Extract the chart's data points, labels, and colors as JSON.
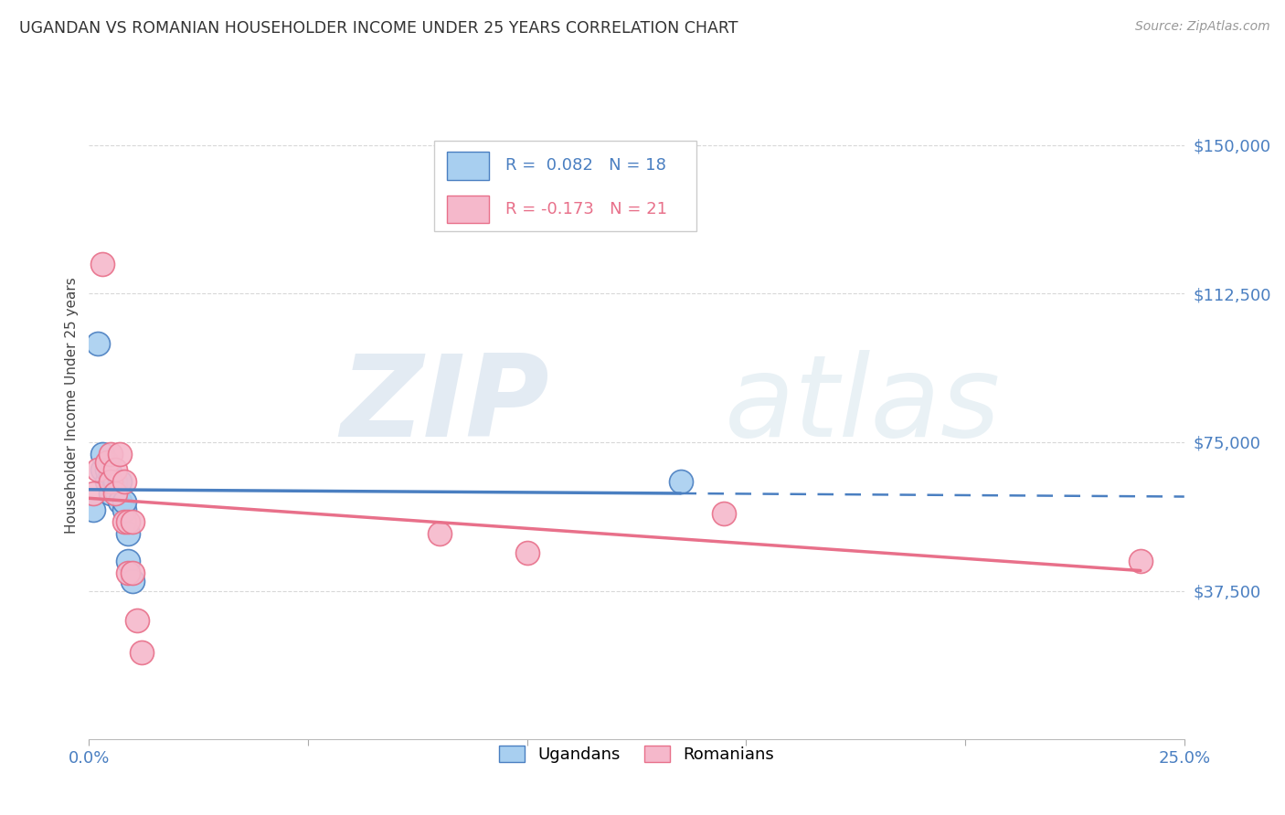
{
  "title": "UGANDAN VS ROMANIAN HOUSEHOLDER INCOME UNDER 25 YEARS CORRELATION CHART",
  "source": "Source: ZipAtlas.com",
  "ylabel": "Householder Income Under 25 years",
  "x_min": 0.0,
  "x_max": 0.25,
  "y_min": 0,
  "y_max": 168750,
  "y_ticks": [
    37500,
    75000,
    112500,
    150000
  ],
  "y_tick_labels": [
    "$37,500",
    "$75,000",
    "$112,500",
    "$150,000"
  ],
  "x_ticks": [
    0.0,
    0.05,
    0.1,
    0.15,
    0.2,
    0.25
  ],
  "ugandan_color": "#a8cff0",
  "romanian_color": "#f5b8cb",
  "ugandan_line_color": "#4a7fc1",
  "romanian_line_color": "#e8708a",
  "R_ugandan": 0.082,
  "N_ugandan": 18,
  "R_romanian": -0.173,
  "N_romanian": 21,
  "ugandan_x": [
    0.001,
    0.002,
    0.003,
    0.003,
    0.004,
    0.004,
    0.005,
    0.005,
    0.006,
    0.006,
    0.007,
    0.007,
    0.008,
    0.008,
    0.009,
    0.009,
    0.01,
    0.135
  ],
  "ugandan_y": [
    58000,
    100000,
    68000,
    72000,
    65000,
    68000,
    62000,
    67000,
    63000,
    65000,
    60000,
    65000,
    58000,
    60000,
    52000,
    45000,
    40000,
    65000
  ],
  "romanian_x": [
    0.001,
    0.002,
    0.003,
    0.004,
    0.005,
    0.005,
    0.006,
    0.006,
    0.007,
    0.008,
    0.008,
    0.009,
    0.009,
    0.01,
    0.01,
    0.011,
    0.012,
    0.08,
    0.1,
    0.145,
    0.24
  ],
  "romanian_y": [
    62000,
    68000,
    120000,
    70000,
    72000,
    65000,
    68000,
    62000,
    72000,
    65000,
    55000,
    55000,
    42000,
    55000,
    42000,
    30000,
    22000,
    52000,
    47000,
    57000,
    45000
  ],
  "watermark_zip": "ZIP",
  "watermark_atlas": "atlas",
  "background_color": "#ffffff",
  "grid_color": "#d8d8d8",
  "tick_label_color": "#4a7fc1"
}
